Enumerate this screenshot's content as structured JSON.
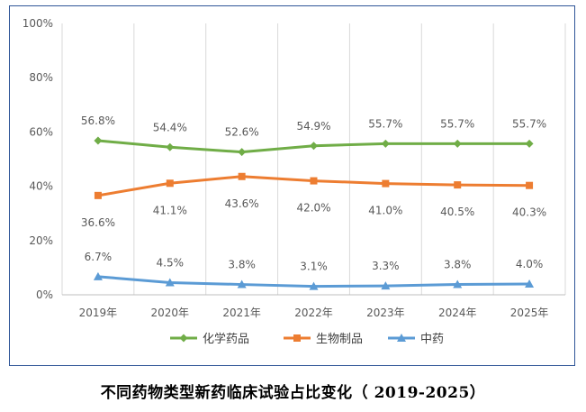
{
  "caption": "不同药物类型新药临床试验占比变化（ 2019-2025）",
  "chart_data": {
    "type": "line",
    "categories": [
      "2019年",
      "2020年",
      "2021年",
      "2022年",
      "2023年",
      "2024年",
      "2025年"
    ],
    "ylim": [
      0,
      100
    ],
    "yticks": [
      "0%",
      "20%",
      "40%",
      "60%",
      "80%",
      "100%"
    ],
    "ytick_values": [
      0,
      20,
      40,
      60,
      80,
      100
    ],
    "grid": "vertical",
    "legend_position": "bottom",
    "series": [
      {
        "name": "化学药品",
        "values": [
          56.8,
          54.4,
          52.6,
          54.9,
          55.7,
          55.7,
          55.7
        ],
        "labels": [
          "56.8%",
          "54.4%",
          "52.6%",
          "54.9%",
          "55.7%",
          "55.7%",
          "55.7%"
        ],
        "color": "#70ad47",
        "marker": "diamond",
        "label_position": "above"
      },
      {
        "name": "生物制品",
        "values": [
          36.6,
          41.1,
          43.6,
          42.0,
          41.0,
          40.5,
          40.3
        ],
        "labels": [
          "36.6%",
          "41.1%",
          "43.6%",
          "42.0%",
          "41.0%",
          "40.5%",
          "40.3%"
        ],
        "color": "#ed7d31",
        "marker": "square",
        "label_position": "below"
      },
      {
        "name": "中药",
        "values": [
          6.7,
          4.5,
          3.8,
          3.1,
          3.3,
          3.8,
          4.0
        ],
        "labels": [
          "6.7%",
          "4.5%",
          "3.8%",
          "3.1%",
          "3.3%",
          "3.8%",
          "4.0%"
        ],
        "color": "#5b9bd5",
        "marker": "triangle",
        "label_position": "above"
      }
    ]
  }
}
